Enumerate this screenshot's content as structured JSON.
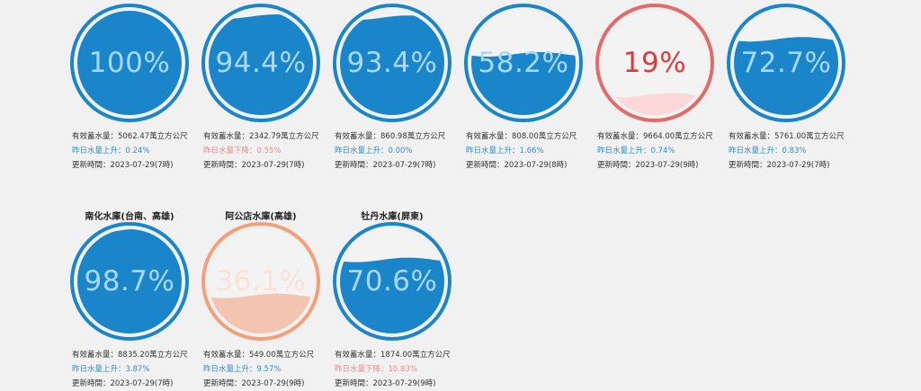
{
  "colors": {
    "blue": "#1a86c9",
    "blue_text": "#a8d8f7",
    "red": "#e46a6a",
    "red_fill": "#fbd9d8",
    "red_text": "#e03a3a",
    "orange": "#f2a07a",
    "orange_fill": "#f3c4b0",
    "orange_text": "#fbe2d6",
    "up_text": "#2e8fd0",
    "down_text": "#f08a8a"
  },
  "reservoirs": [
    {
      "name": "",
      "percent_text": "100%",
      "level": 1.0,
      "theme": "blue",
      "storage": "有效蓄水量：5062.47萬立方公尺",
      "change": "昨日水量上升：0.24%",
      "change_dir": "up",
      "updated": "更新時間：2023-07-29(7時)"
    },
    {
      "name": "",
      "percent_text": "94.4%",
      "level": 0.944,
      "theme": "blue",
      "storage": "有效蓄水量：2342.79萬立方公尺",
      "change": "昨日水量下降：0.55%",
      "change_dir": "down",
      "updated": "更新時間：2023-07-29(7時)"
    },
    {
      "name": "",
      "percent_text": "93.4%",
      "level": 0.934,
      "theme": "blue",
      "storage": "有效蓄水量：860.98萬立方公尺",
      "change": "昨日水量上升：0.00%",
      "change_dir": "up",
      "updated": "更新時間：2023-07-29(7時)"
    },
    {
      "name": "",
      "percent_text": "58.2%",
      "level": 0.582,
      "theme": "blue",
      "storage": "有效蓄水量：808.00萬立方公尺",
      "change": "昨日水量上升：1.66%",
      "change_dir": "up",
      "updated": "更新時間：2023-07-29(8時)"
    },
    {
      "name": "",
      "percent_text": "19%",
      "level": 0.19,
      "theme": "red",
      "storage": "有效蓄水量：9664.00萬立方公尺",
      "change": "昨日水量上升：0.74%",
      "change_dir": "up",
      "updated": "更新時間：2023-07-29(9時)"
    },
    {
      "name": "",
      "percent_text": "72.7%",
      "level": 0.727,
      "theme": "blue",
      "storage": "有效蓄水量：5761.00萬立方公尺",
      "change": "昨日水量上升：0.83%",
      "change_dir": "up",
      "updated": "更新時間：2023-07-29(7時)"
    },
    {
      "name": "南化水庫(台南、高雄)",
      "percent_text": "98.7%",
      "level": 0.987,
      "theme": "blue",
      "storage": "有效蓄水量：8835.20萬立方公尺",
      "change": "昨日水量上升：3.87%",
      "change_dir": "up",
      "updated": "更新時間：2023-07-29(7時)"
    },
    {
      "name": "阿公店水庫(高雄)",
      "percent_text": "36.1%",
      "level": 0.361,
      "theme": "orange",
      "storage": "有效蓄水量：549.00萬立方公尺",
      "change": "昨日水量上升：9.57%",
      "change_dir": "up",
      "updated": "更新時間：2023-07-29(9時)"
    },
    {
      "name": "牡丹水庫(屏東)",
      "percent_text": "70.6%",
      "level": 0.706,
      "theme": "blue",
      "storage": "有效蓄水量：1874.00萬立方公尺",
      "change": "昨日水量下降：10.83%",
      "change_dir": "down",
      "updated": "更新時間：2023-07-29(9時)"
    }
  ]
}
